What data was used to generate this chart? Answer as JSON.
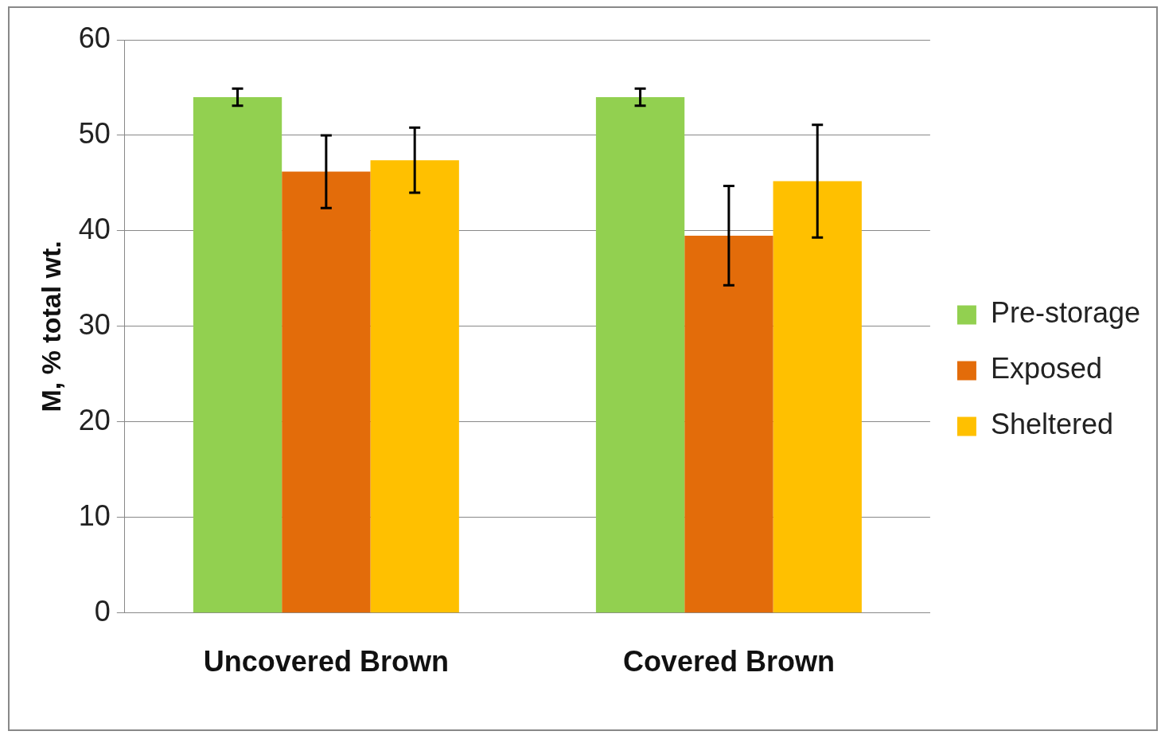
{
  "chart_data": {
    "type": "bar",
    "ylabel": "M, % total wt.",
    "categories": [
      "Uncovered Brown",
      "Covered Brown"
    ],
    "series": [
      {
        "name": "Pre-storage",
        "color": "#92d050",
        "values": [
          54,
          54
        ],
        "errors": [
          0.9,
          0.9
        ]
      },
      {
        "name": "Exposed",
        "color": "#e36c0a",
        "values": [
          46.2,
          39.5
        ],
        "errors": [
          3.8,
          5.2
        ]
      },
      {
        "name": "Sheltered",
        "color": "#ffc000",
        "values": [
          47.4,
          45.2
        ],
        "errors": [
          3.4,
          5.9
        ]
      }
    ],
    "ylim": [
      0,
      60
    ],
    "yticks": [
      0,
      10,
      20,
      30,
      40,
      50,
      60
    ],
    "grid": "y",
    "legend": "right"
  }
}
